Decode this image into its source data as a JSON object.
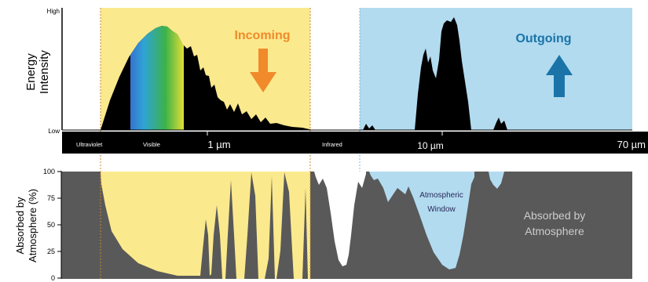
{
  "colors": {
    "incoming_band": "#fbe98d",
    "outgoing_band": "#b2dbf0",
    "incoming_arrow": "#f08a2a",
    "outgoing_arrow": "#1a74a8",
    "spectrum_fill": "#000000",
    "absorbed_fill": "#595959",
    "axis_strip": "#000000",
    "dotted_line": "#c8872f",
    "muted_text": "#cccccc"
  },
  "top_panel": {
    "ylabel_line1": "Energy",
    "ylabel_line2": "Intensity",
    "y_high": "High",
    "y_low": "Low",
    "incoming_label": "Incoming",
    "outgoing_label": "Outgoing",
    "incoming_arrow_icon": "arrow-down",
    "outgoing_arrow_icon": "arrow-up"
  },
  "wavelength_axis": {
    "region_ultraviolet": "Ultraviolet",
    "region_visible": "Visible",
    "region_infrared": "Infrared",
    "tick_1": "1 µm",
    "tick_10": "10 µm",
    "tick_70": "70 µm"
  },
  "bottom_panel": {
    "ylabel_line1": "Absorbed by",
    "ylabel_line2": "Atmosphere (%)",
    "yticks": [
      "100",
      "75",
      "50",
      "25",
      "0"
    ],
    "window_line1": "Atmospheric",
    "window_line2": "Window",
    "absorbed_line1": "Absorbed by",
    "absorbed_line2": "Atmosphere"
  }
}
